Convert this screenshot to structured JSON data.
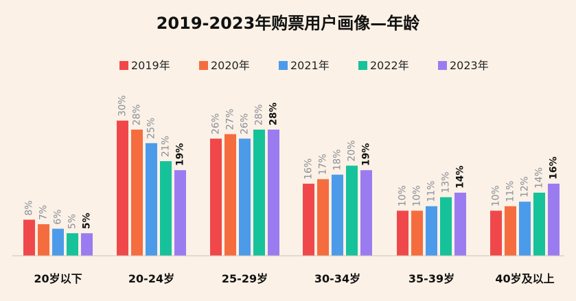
{
  "chart_data": {
    "type": "bar",
    "title": "2019-2023年购票用户画像—年龄",
    "categories": [
      "20岁以下",
      "20-24岁",
      "25-29岁",
      "30-34岁",
      "35-39岁",
      "40岁及以上"
    ],
    "series": [
      {
        "name": "2019年",
        "color": "#f0484a",
        "values": [
          8,
          30,
          26,
          16,
          10,
          10
        ],
        "labels": [
          "8%",
          "30%",
          "26%",
          "16%",
          "10%",
          "10%"
        ]
      },
      {
        "name": "2020年",
        "color": "#f56d3f",
        "values": [
          7,
          28,
          27,
          17,
          10,
          11
        ],
        "labels": [
          "7%",
          "28%",
          "27%",
          "17%",
          "10%",
          "11%"
        ]
      },
      {
        "name": "2021年",
        "color": "#4c9bea",
        "values": [
          6,
          25,
          26,
          18,
          11,
          12
        ],
        "labels": [
          "6%",
          "25%",
          "26%",
          "18%",
          "11%",
          "12%"
        ]
      },
      {
        "name": "2022年",
        "color": "#16c29a",
        "values": [
          5,
          21,
          28,
          20,
          13,
          14
        ],
        "labels": [
          "5%",
          "21%",
          "28%",
          "20%",
          "13%",
          "14%"
        ]
      },
      {
        "name": "2023年",
        "color": "#9b7cf0",
        "values": [
          5,
          19,
          28,
          19,
          14,
          16
        ],
        "labels": [
          "5%",
          "19%",
          "28%",
          "19%",
          "14%",
          "16%"
        ]
      }
    ],
    "ylim": [
      0,
      30
    ],
    "legend": "top-center",
    "grid": false,
    "xlabel": "",
    "ylabel": ""
  }
}
